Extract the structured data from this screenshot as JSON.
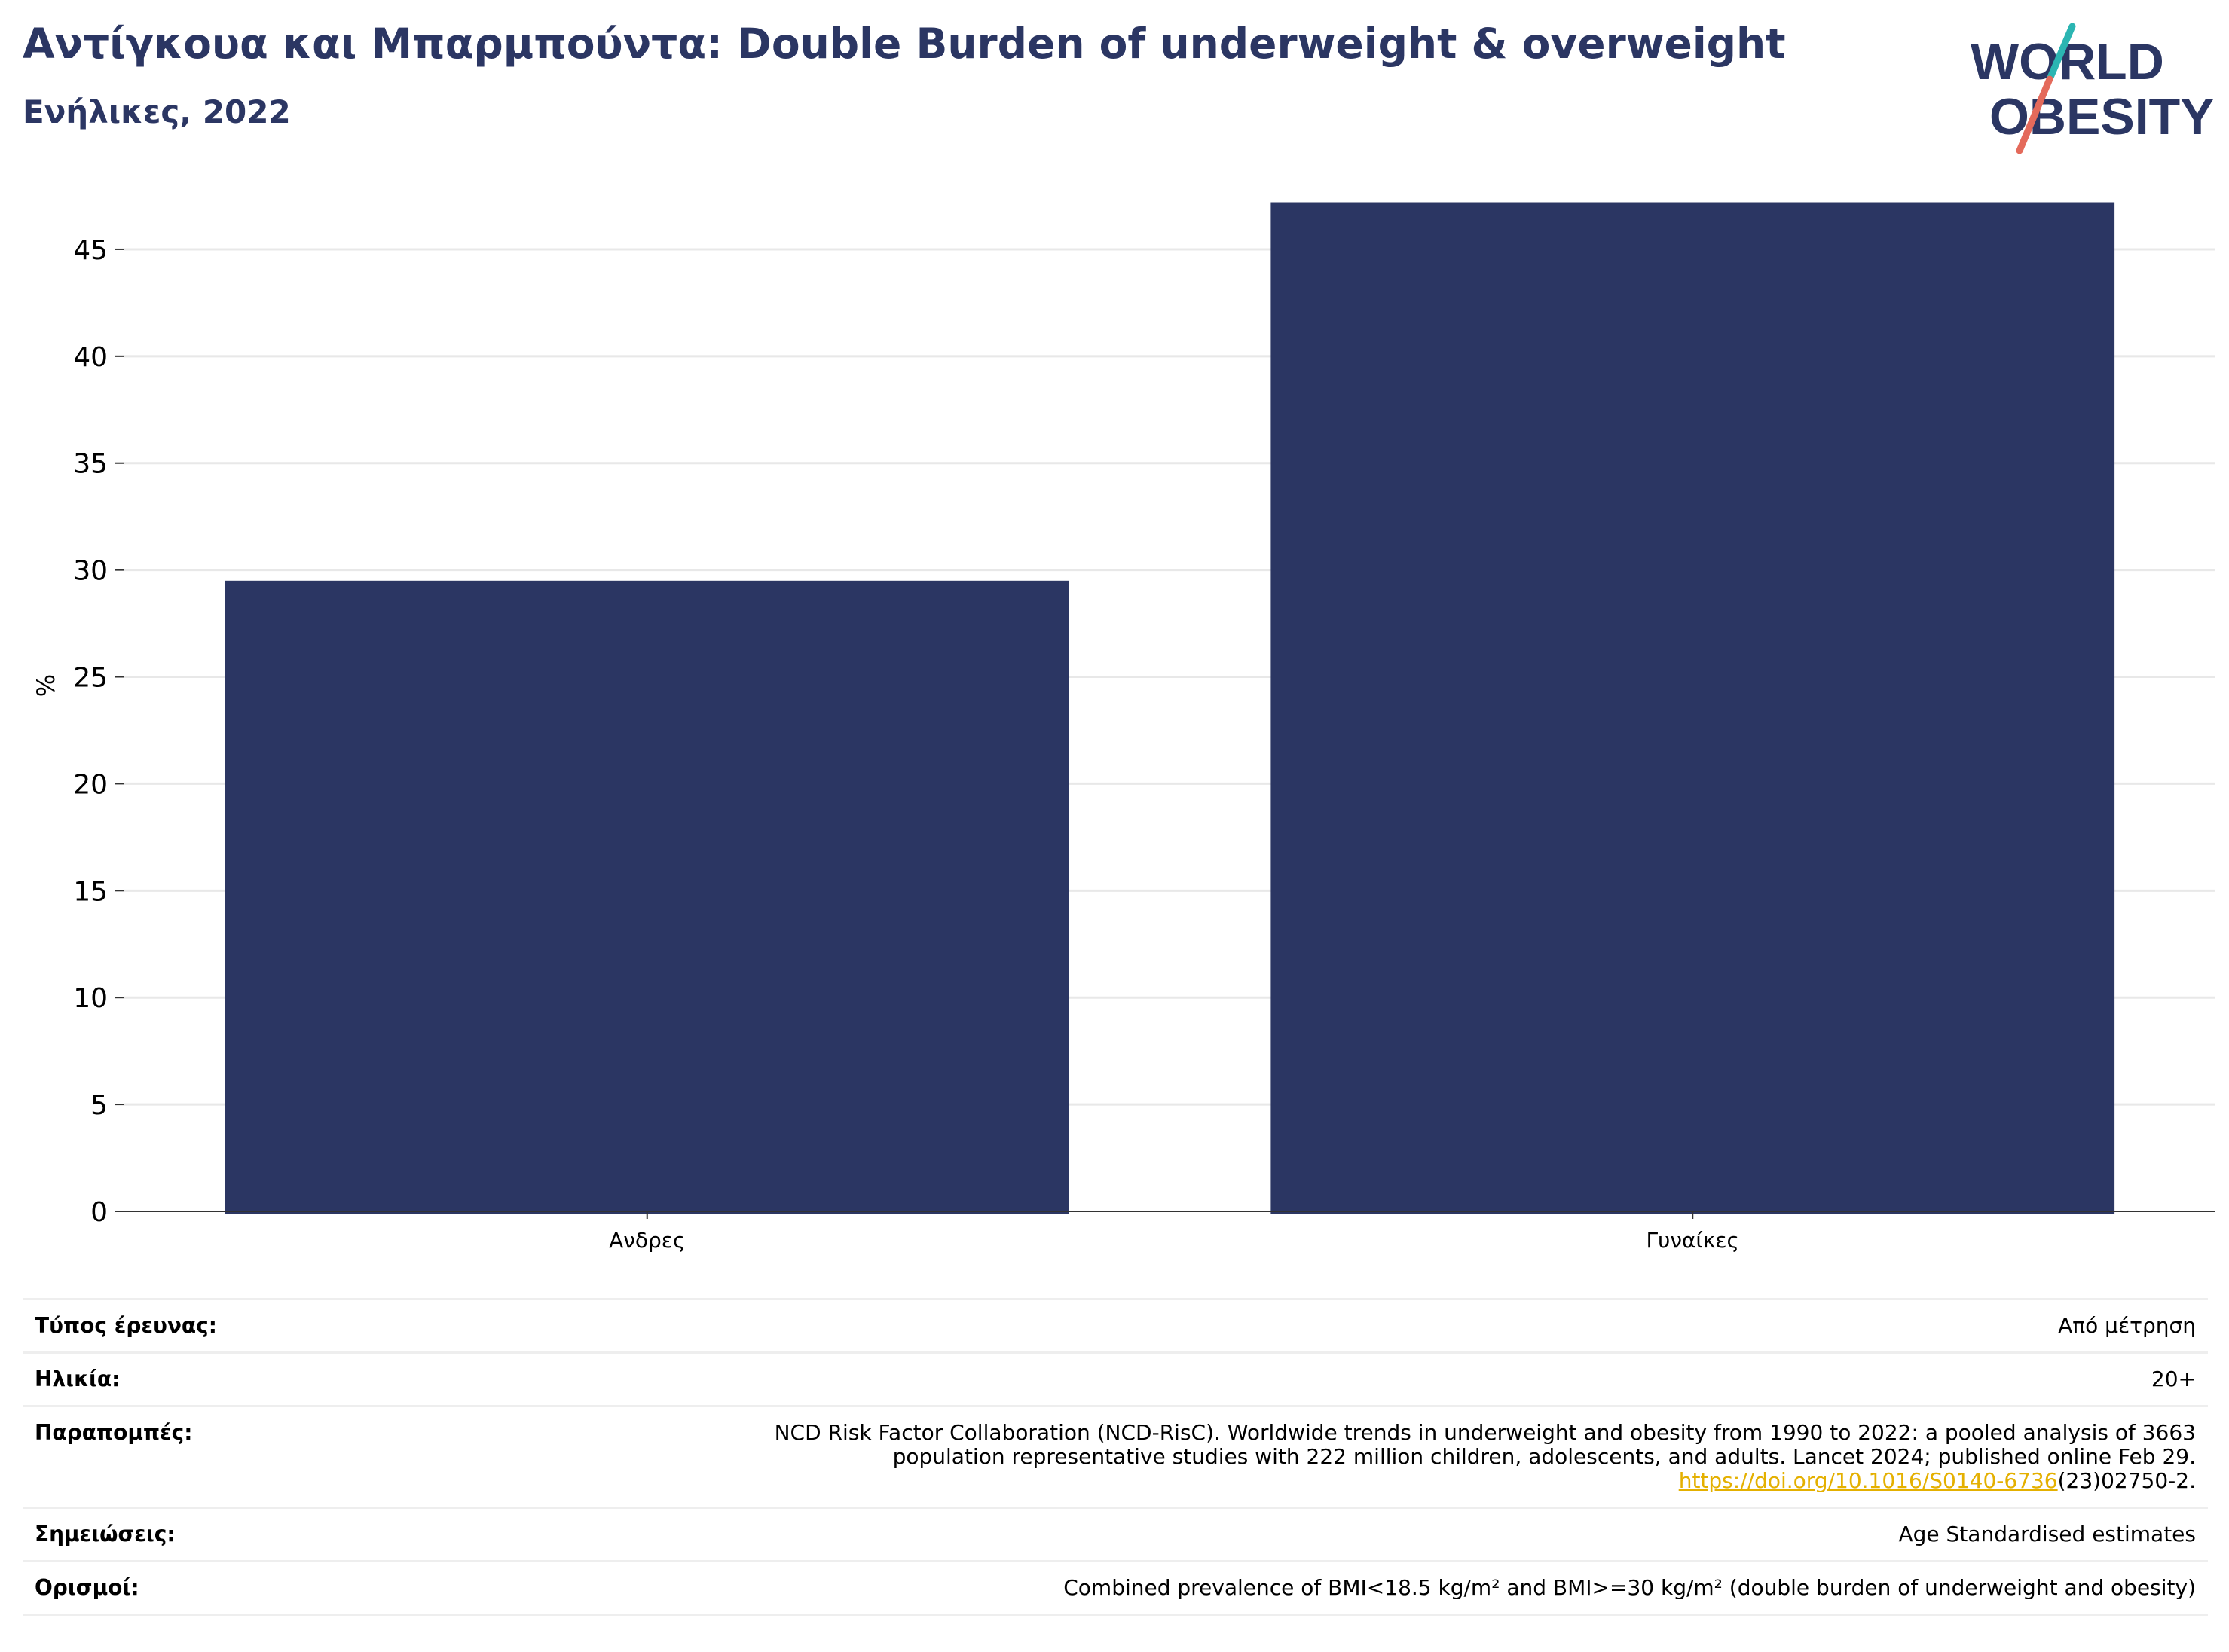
{
  "header": {
    "title": "Αντίγκουα και Μπαρμπούντα: Double Burden of underweight & overweight",
    "subtitle": "Ενήλικες, 2022"
  },
  "logo": {
    "line1": "WORLD",
    "line2": "OBESITY",
    "icon": "world-obesity-logo"
  },
  "colors": {
    "bar": "#2b3663",
    "text": "#2b3663",
    "slash_teal": "#2bb5b2",
    "slash_red": "#e46a5b",
    "link": "#e4b000"
  },
  "chart_data": {
    "type": "bar",
    "categories": [
      "Ανδρες",
      "Γυναίκες"
    ],
    "values": [
      29.5,
      47.2
    ],
    "ylabel": "%",
    "ylim": [
      0,
      47.5
    ],
    "yticks": [
      0,
      5,
      10,
      15,
      20,
      25,
      30,
      35,
      40,
      45
    ],
    "grid": true
  },
  "info": {
    "survey_type": {
      "label": "Τύπος έρευνας:",
      "value": "Από μέτρηση"
    },
    "age": {
      "label": "Ηλικία:",
      "value": "20+"
    },
    "references": {
      "label": "Παραπομπές:",
      "line1": "NCD Risk Factor Collaboration (NCD-RisC). Worldwide trends in underweight and obesity from 1990 to 2022: a pooled analysis of 3663",
      "line2": "population representative studies with 222 million children, adolescents, and adults. Lancet 2024; published online Feb 29.",
      "link": "https://doi.org/10.1016/S0140-6736",
      "link_suffix": "(23)02750-2."
    },
    "notes": {
      "label": "Σημειώσεις:",
      "value": "Age Standardised estimates"
    },
    "definitions": {
      "label": "Ορισμοί:",
      "value": "Combined prevalence of BMI<18.5 kg/m² and BMI>=30 kg/m² (double burden of underweight and obesity)"
    }
  }
}
